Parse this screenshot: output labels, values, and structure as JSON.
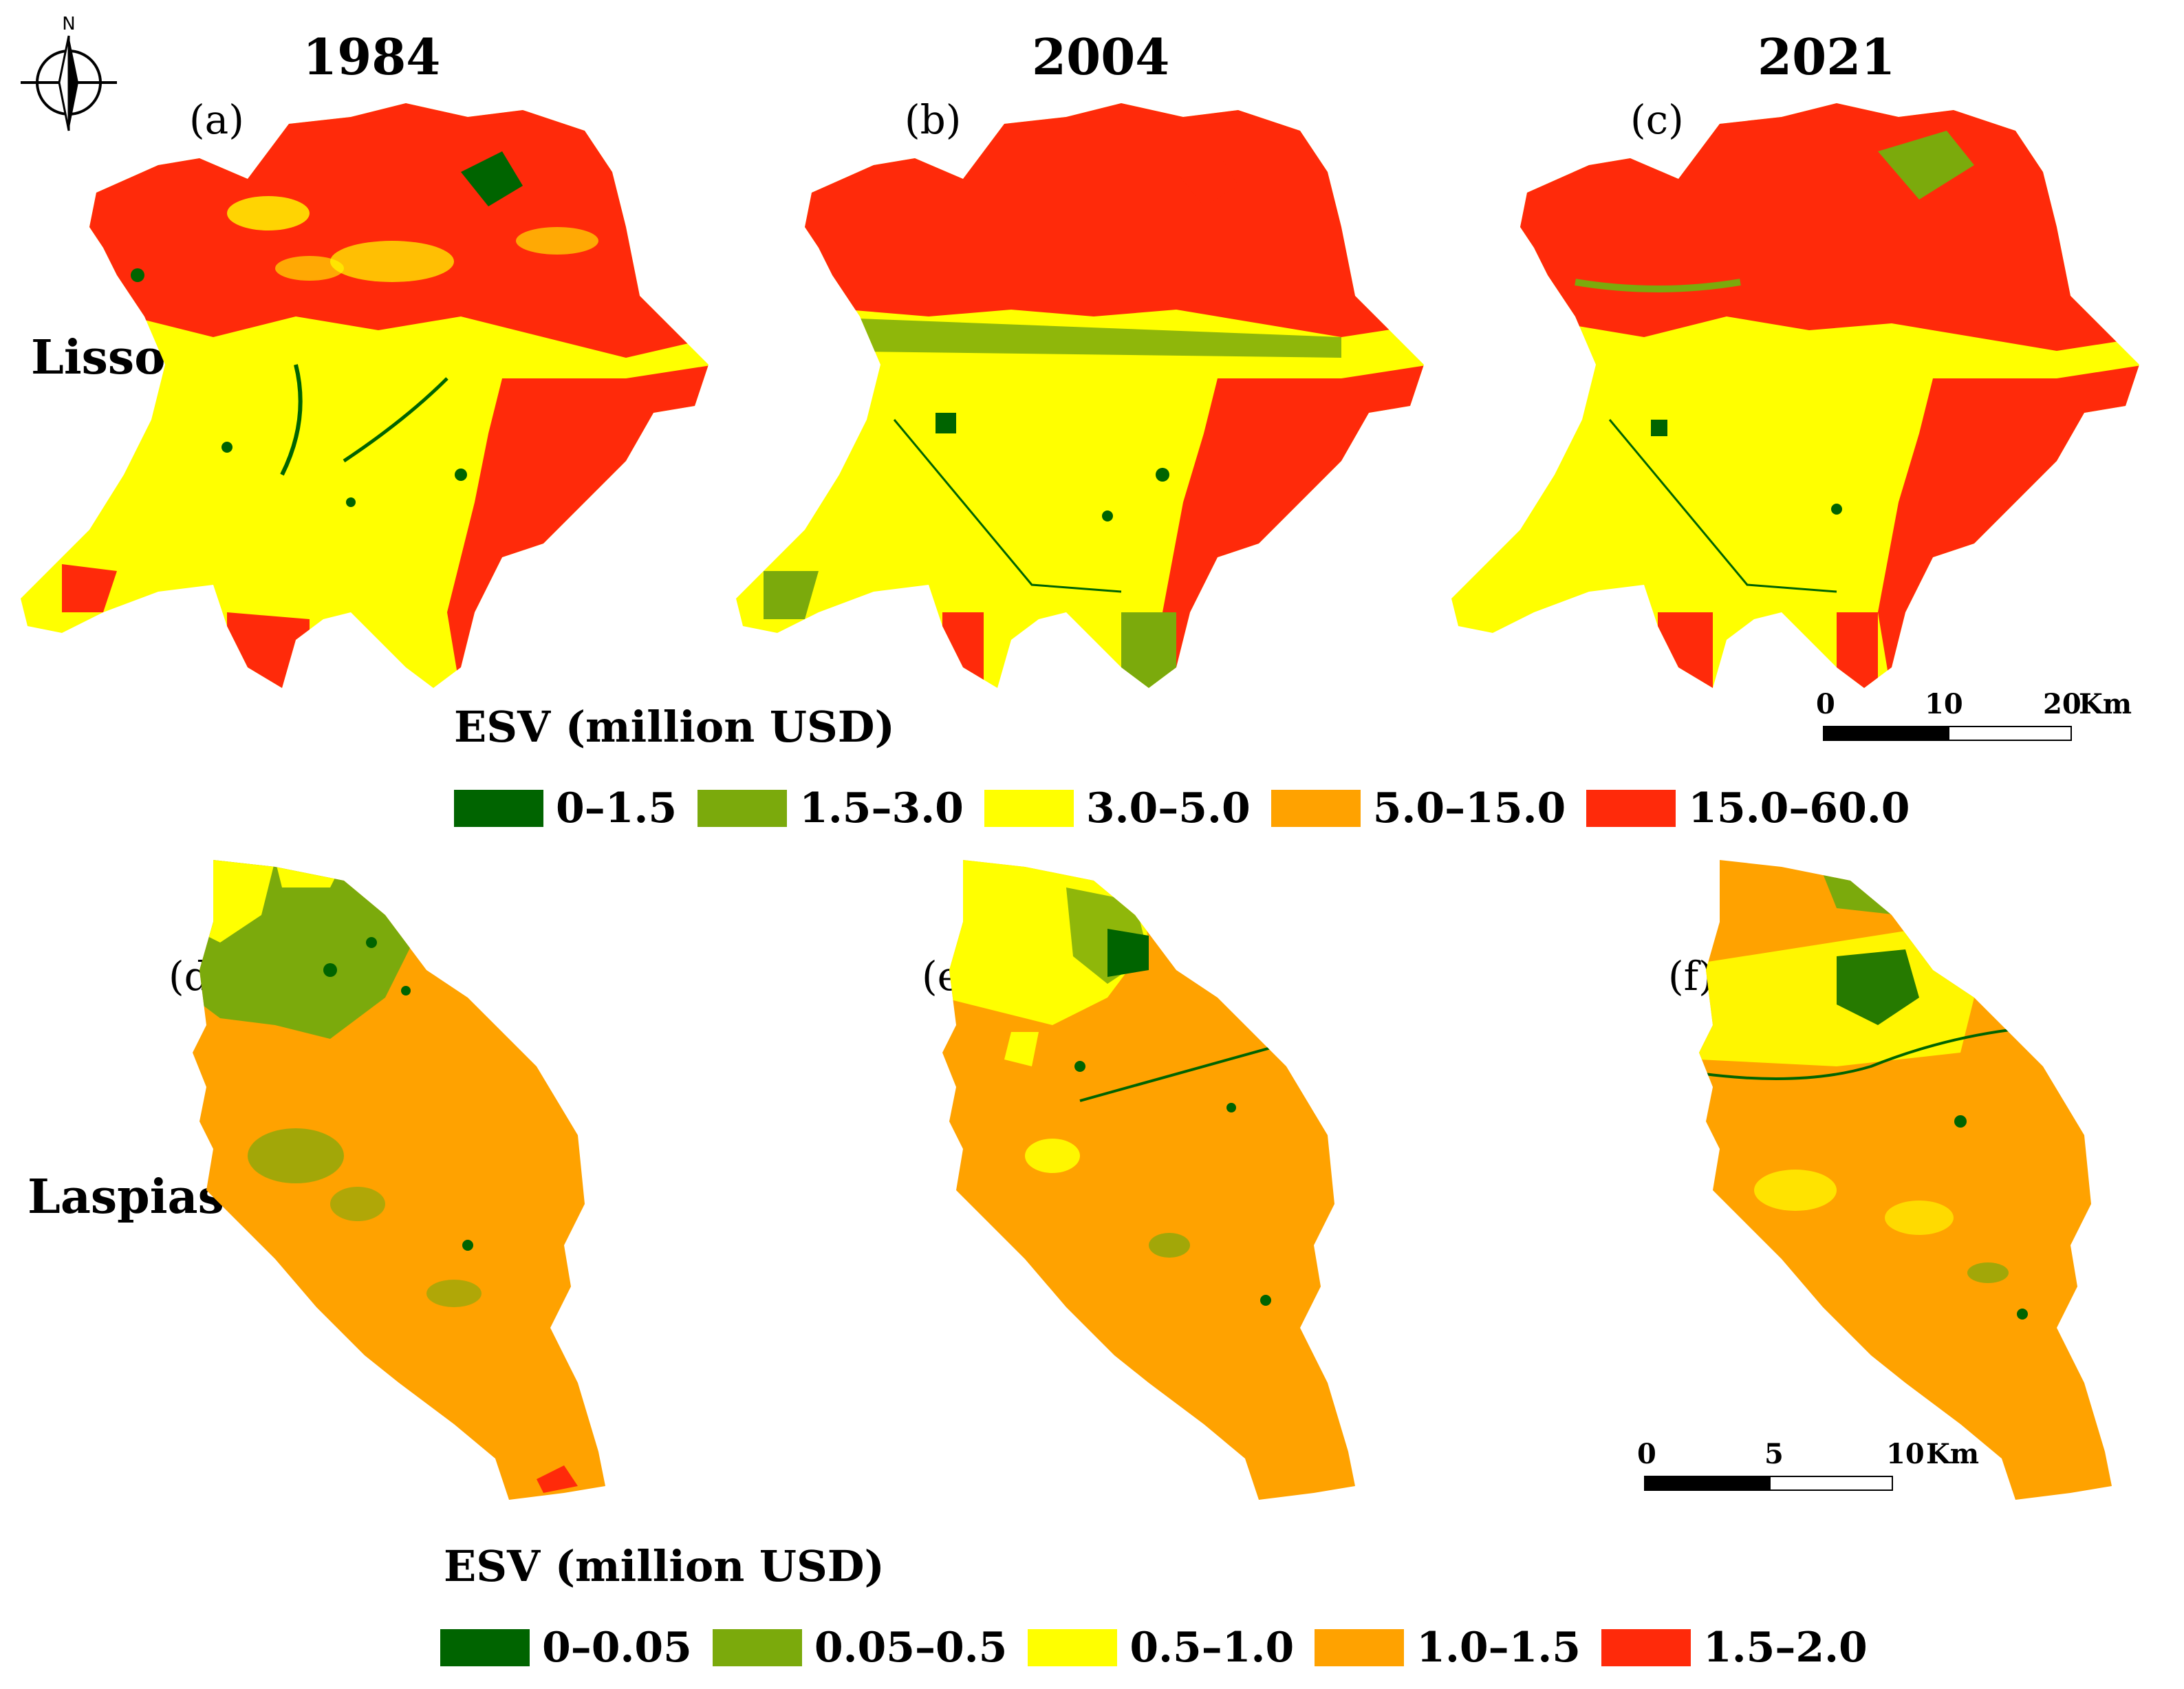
{
  "north_arrow": {
    "label": "N"
  },
  "years": [
    "1984",
    "2004",
    "2021"
  ],
  "panel_labels": [
    "(a)",
    "(b)",
    "(c)",
    "(d)",
    "(e)",
    "(f)"
  ],
  "regions": {
    "top": "Lissos",
    "bottom": "Laspias"
  },
  "legend_top": {
    "title": "ESV (million USD)",
    "classes": [
      {
        "label": "0–1.5",
        "color": "#006400"
      },
      {
        "label": "1.5–3.0",
        "color": "#7BAA0C"
      },
      {
        "label": "3.0–5.0",
        "color": "#FFFF00"
      },
      {
        "label": "5.0–15.0",
        "color": "#FFA200"
      },
      {
        "label": "15.0–60.0",
        "color": "#FF2A0A"
      }
    ]
  },
  "legend_bottom": {
    "title": "ESV (million USD)",
    "classes": [
      {
        "label": "0–0.05",
        "color": "#006400"
      },
      {
        "label": "0.05–0.5",
        "color": "#7BAA0C"
      },
      {
        "label": "0.5–1.0",
        "color": "#FFFF00"
      },
      {
        "label": "1.0–1.5",
        "color": "#FFA200"
      },
      {
        "label": "1.5–2.0",
        "color": "#FF2A0A"
      }
    ]
  },
  "scalebar_top": {
    "ticks": [
      "0",
      "10",
      "20"
    ],
    "unit": "Km"
  },
  "scalebar_bottom": {
    "ticks": [
      "0",
      "5",
      "10"
    ],
    "unit": "Km"
  }
}
